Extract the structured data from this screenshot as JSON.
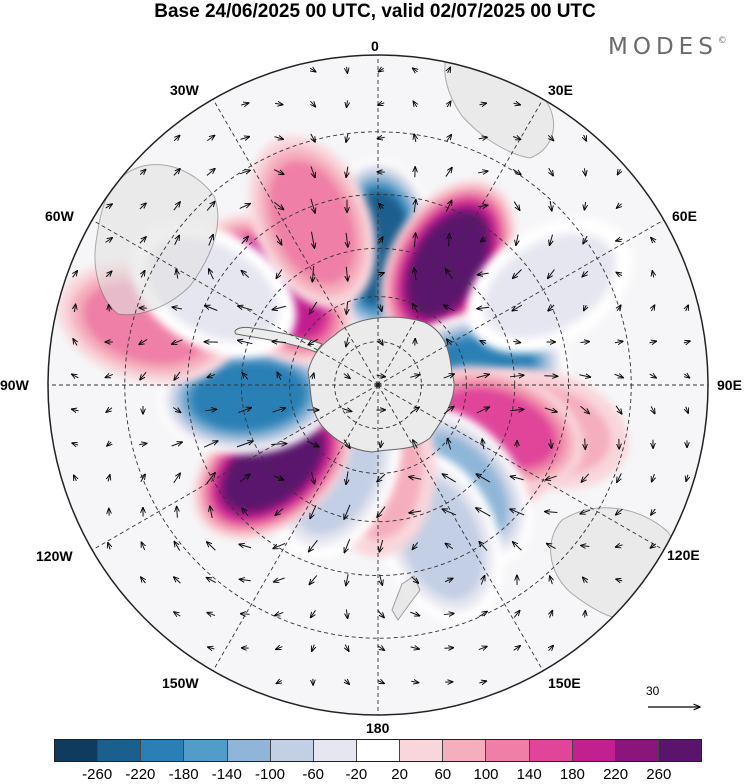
{
  "title": "Base 24/06/2025 00 UTC, valid 02/07/2025 00 UTC",
  "logo": {
    "text": "MODES",
    "mark": "©"
  },
  "map": {
    "projection": "south-polar-stereographic",
    "longitude_labels": {
      "lon_0": "0",
      "lon_30e": "30E",
      "lon_60e": "60E",
      "lon_90e": "90E",
      "lon_120e": "120E",
      "lon_150e": "150E",
      "lon_180": "180",
      "lon_150w": "150W",
      "lon_120w": "120W",
      "lon_90w": "90W",
      "lon_60w": "60W",
      "lon_30w": "30W"
    },
    "reference_vector": {
      "label": "30",
      "icon": "arrow-right-icon"
    }
  },
  "colorbar": {
    "colors": [
      "#0f3b5e",
      "#1a5f8e",
      "#2a80b5",
      "#519cc8",
      "#8fb6d8",
      "#c3cfe4",
      "#e6e6f0",
      "#ffffff",
      "#f9d6dc",
      "#f5aebd",
      "#ef7fa6",
      "#e0459a",
      "#c21f8f",
      "#8a167d",
      "#5a146c"
    ],
    "tick_labels": [
      "-260",
      "-220",
      "-180",
      "-140",
      "-100",
      "-60",
      "-20",
      "20",
      "60",
      "100",
      "140",
      "180",
      "220",
      "260"
    ]
  },
  "anomalies": [
    {
      "lon": 0,
      "lat": -45,
      "value": -250
    },
    {
      "lon": 30,
      "lat": -44,
      "value": 230
    },
    {
      "lon": 82,
      "lat": -56,
      "value": -200
    },
    {
      "lon": 105,
      "lat": -36,
      "value": 40
    },
    {
      "lon": 122,
      "lat": -54,
      "value": 160
    },
    {
      "lon": 110,
      "lat": -48,
      "value": 120
    },
    {
      "lon": 141,
      "lat": -47,
      "value": -110
    },
    {
      "lon": 158,
      "lat": -37,
      "value": -70
    },
    {
      "lon": 180,
      "lat": -62,
      "value": 40
    },
    {
      "lon": 205,
      "lat": -57,
      "value": -80
    },
    {
      "lon": 232,
      "lat": -46,
      "value": 245
    },
    {
      "lon": 265,
      "lat": -47,
      "value": -190
    },
    {
      "lon": 285,
      "lat": -18,
      "value": 60
    },
    {
      "lon": 313,
      "lat": -44,
      "value": 175
    },
    {
      "lon": 338,
      "lat": -34,
      "value": 90
    },
    {
      "lon": 300,
      "lat": -30,
      "value": -40
    },
    {
      "lon": 60,
      "lat": -28,
      "value": -30
    }
  ]
}
